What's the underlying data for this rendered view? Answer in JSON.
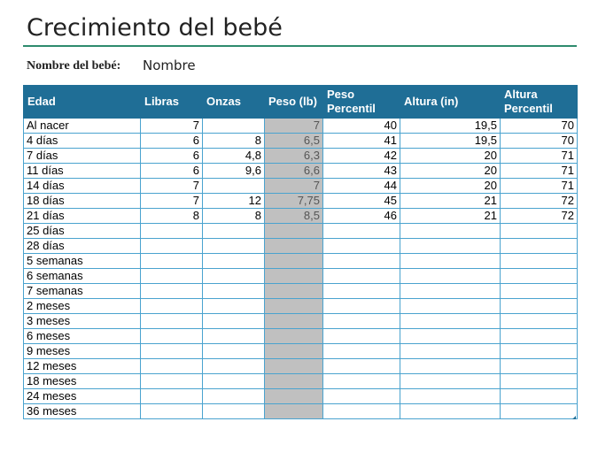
{
  "title": "Crecimiento del bebé",
  "baby_name": {
    "label": "Nombre del bebé:",
    "value": "Nombre"
  },
  "table": {
    "headers": [
      "Edad",
      "Libras",
      "Onzas",
      "Peso (lb)",
      "Peso Percentil",
      "Altura (in)",
      "Altura Percentil"
    ],
    "rows": [
      [
        "Al nacer",
        "7",
        "",
        "7",
        "40",
        "19,5",
        "70"
      ],
      [
        "4 días",
        "6",
        "8",
        "6,5",
        "41",
        "19,5",
        "70"
      ],
      [
        "7 días",
        "6",
        "4,8",
        "6,3",
        "42",
        "20",
        "71"
      ],
      [
        "11 días",
        "6",
        "9,6",
        "6,6",
        "43",
        "20",
        "71"
      ],
      [
        "14 días",
        "7",
        "",
        "7",
        "44",
        "20",
        "71"
      ],
      [
        "18 días",
        "7",
        "12",
        "7,75",
        "45",
        "21",
        "72"
      ],
      [
        "21 días",
        "8",
        "8",
        "8,5",
        "46",
        "21",
        "72"
      ],
      [
        "25 días",
        "",
        "",
        "",
        "",
        "",
        ""
      ],
      [
        "28 días",
        "",
        "",
        "",
        "",
        "",
        ""
      ],
      [
        "5 semanas",
        "",
        "",
        "",
        "",
        "",
        ""
      ],
      [
        "6 semanas",
        "",
        "",
        "",
        "",
        "",
        ""
      ],
      [
        "7 semanas",
        "",
        "",
        "",
        "",
        "",
        ""
      ],
      [
        "2 meses",
        "",
        "",
        "",
        "",
        "",
        ""
      ],
      [
        "3 meses",
        "",
        "",
        "",
        "",
        "",
        ""
      ],
      [
        "6 meses",
        "",
        "",
        "",
        "",
        "",
        ""
      ],
      [
        "9 meses",
        "",
        "",
        "",
        "",
        "",
        ""
      ],
      [
        "12 meses",
        "",
        "",
        "",
        "",
        "",
        ""
      ],
      [
        "18 meses",
        "",
        "",
        "",
        "",
        "",
        ""
      ],
      [
        "24 meses",
        "",
        "",
        "",
        "",
        "",
        ""
      ],
      [
        "36 meses",
        "",
        "",
        "",
        "",
        "",
        ""
      ]
    ]
  }
}
